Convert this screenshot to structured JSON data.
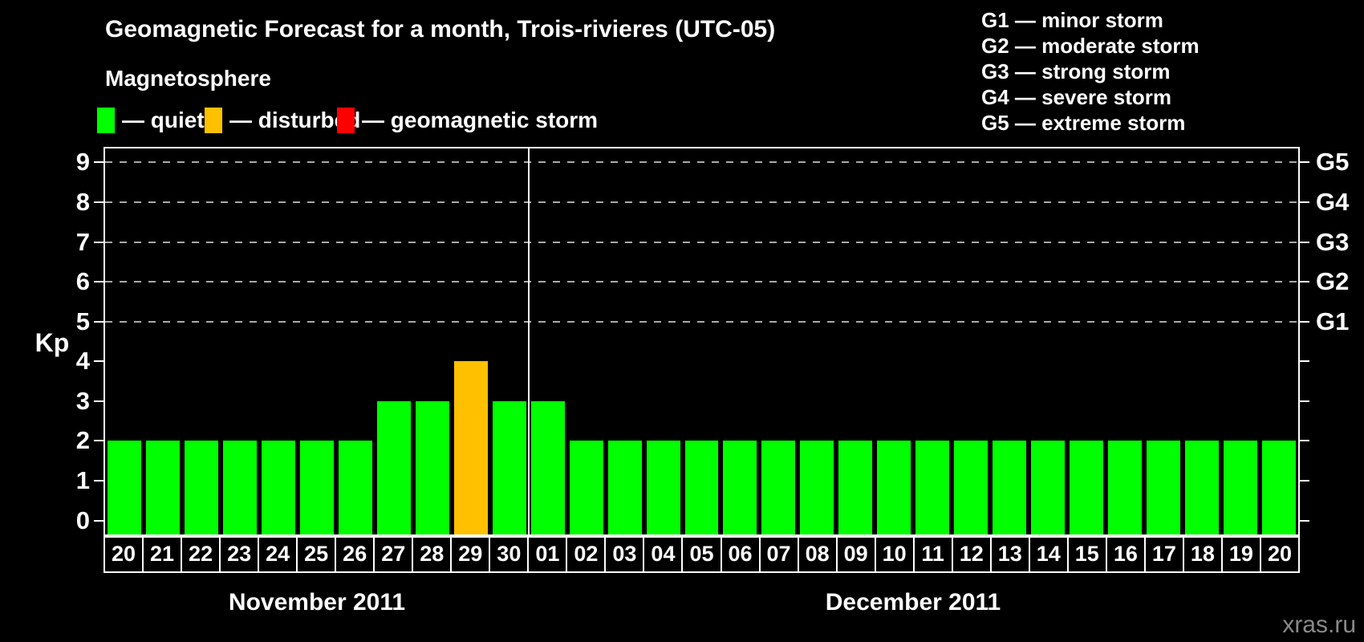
{
  "chart_data": {
    "type": "bar",
    "title": "Geomagnetic Forecast for a month, Trois-rivieres (UTC-05)",
    "ylabel": "Kp",
    "ylim": [
      -0.35,
      9.35
    ],
    "y_ticks": [
      0,
      1,
      2,
      3,
      4,
      5,
      6,
      7,
      8,
      9
    ],
    "gridlines_at": [
      5,
      6,
      7,
      8,
      9
    ],
    "grid": "dashed horizontal lines at Kp 5-9 only",
    "legend_position": "top",
    "right_axis": [
      {
        "label": "G1",
        "kp": 5
      },
      {
        "label": "G2",
        "kp": 6
      },
      {
        "label": "G3",
        "kp": 7
      },
      {
        "label": "G4",
        "kp": 8
      },
      {
        "label": "G5",
        "kp": 9
      }
    ],
    "months": [
      {
        "label": "November 2011",
        "days": [
          "20",
          "21",
          "22",
          "23",
          "24",
          "25",
          "26",
          "27",
          "28",
          "29",
          "30"
        ],
        "kp_values": [
          2,
          2,
          2,
          2,
          2,
          2,
          2,
          3,
          3,
          4,
          3
        ],
        "states": [
          "quiet",
          "quiet",
          "quiet",
          "quiet",
          "quiet",
          "quiet",
          "quiet",
          "quiet",
          "quiet",
          "disturbed",
          "quiet"
        ]
      },
      {
        "label": "December 2011",
        "days": [
          "01",
          "02",
          "03",
          "04",
          "05",
          "06",
          "07",
          "08",
          "09",
          "10",
          "11",
          "12",
          "13",
          "14",
          "15",
          "16",
          "17",
          "18",
          "19",
          "20"
        ],
        "kp_values": [
          3,
          2,
          2,
          2,
          2,
          2,
          2,
          2,
          2,
          2,
          2,
          2,
          2,
          2,
          2,
          2,
          2,
          2,
          2,
          2
        ],
        "states": [
          "quiet",
          "quiet",
          "quiet",
          "quiet",
          "quiet",
          "quiet",
          "quiet",
          "quiet",
          "quiet",
          "quiet",
          "quiet",
          "quiet",
          "quiet",
          "quiet",
          "quiet",
          "quiet",
          "quiet",
          "quiet",
          "quiet",
          "quiet"
        ]
      }
    ],
    "state_colors": {
      "quiet": "#00FF00",
      "disturbed": "#FFC000",
      "storm": "#FF0000"
    }
  },
  "legend": {
    "heading": "Magnetosphere",
    "items": [
      {
        "label": "— quiet",
        "state": "quiet",
        "color": "#00FF00"
      },
      {
        "label": "— disturbed",
        "state": "disturbed",
        "color": "#FFC000"
      },
      {
        "label": "— geomagnetic storm",
        "state": "storm",
        "color": "#FF0000"
      }
    ]
  },
  "g_scale_legend": [
    "G1 — minor storm",
    "G2 — moderate storm",
    "G3 — strong storm",
    "G4 — severe storm",
    "G5 — extreme storm"
  ],
  "watermark": "xras.ru"
}
